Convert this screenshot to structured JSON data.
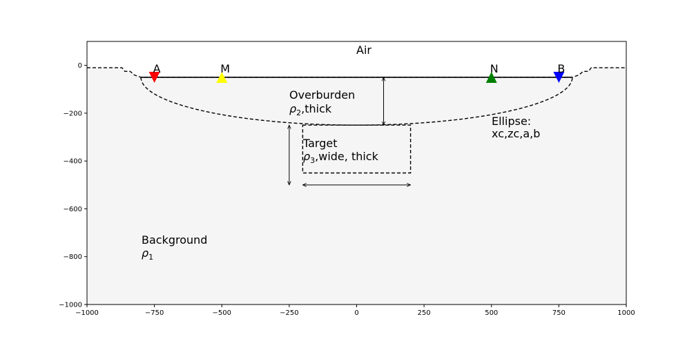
{
  "chart_data": {
    "type": "diagram",
    "xlim": [
      -1000,
      1000
    ],
    "ylim": [
      -1000,
      100
    ],
    "xticks": [
      -1000,
      -750,
      -500,
      -250,
      0,
      250,
      500,
      750,
      1000
    ],
    "yticks": [
      0,
      -200,
      -400,
      -600,
      -800,
      -1000
    ],
    "xtick_labels": [
      "−1000",
      "−750",
      "−500",
      "−250",
      "0",
      "250",
      "500",
      "750",
      "1000"
    ],
    "ytick_labels": [
      "0",
      "−200",
      "−400",
      "−600",
      "−800",
      "−1000"
    ],
    "colors": {
      "background_fill": "#f5f5f5",
      "electrode_a": "#ff0000",
      "electrode_m": "#ffff00",
      "electrode_n": "#008000",
      "electrode_b": "#0000ff"
    },
    "topography": [
      [
        -1000,
        -10
      ],
      [
        -870,
        -10
      ],
      [
        -860,
        -25
      ],
      [
        -840,
        -25
      ],
      [
        -825,
        -40
      ],
      [
        -800,
        -50
      ],
      [
        800,
        -50
      ],
      [
        825,
        -40
      ],
      [
        840,
        -25
      ],
      [
        860,
        -25
      ],
      [
        870,
        -10
      ],
      [
        1000,
        -10
      ]
    ],
    "surface_line": {
      "x": [
        -800,
        800
      ],
      "y": -50
    },
    "ellipse": {
      "xc": 0,
      "zc": -50,
      "a": 800,
      "b": 200
    },
    "target_box": {
      "x": [
        -200,
        200
      ],
      "z": [
        -250,
        -450
      ]
    },
    "arrows": [
      {
        "x": [
          100,
          100
        ],
        "z": [
          -50,
          -250
        ]
      },
      {
        "x": [
          -250,
          -250
        ],
        "z": [
          -250,
          -500
        ]
      },
      {
        "x": [
          -200,
          200
        ],
        "z": [
          -500,
          -500
        ]
      }
    ],
    "electrodes": [
      {
        "label": "A",
        "x": -750,
        "z": -50,
        "marker": "down",
        "color": "#ff0000"
      },
      {
        "label": "M",
        "x": -500,
        "z": -50,
        "marker": "up",
        "color": "#ffff00"
      },
      {
        "label": "N",
        "x": 500,
        "z": -50,
        "marker": "up",
        "color": "#008000"
      },
      {
        "label": "B",
        "x": 750,
        "z": -50,
        "marker": "down",
        "color": "#0000ff"
      }
    ],
    "annotations": {
      "air": "Air",
      "overburden_line1": "Overburden",
      "overburden_rho": "ρ",
      "overburden_sub": "2",
      "overburden_rest": ",thick",
      "target_line1": "Target",
      "target_rho": "ρ",
      "target_sub": "3",
      "target_rest": ",wide, thick",
      "ellipse_line1": "Ellipse:",
      "ellipse_line2": "xc,zc,a,b",
      "background_line1": "Background",
      "background_rho": "ρ",
      "background_sub": "1"
    }
  }
}
